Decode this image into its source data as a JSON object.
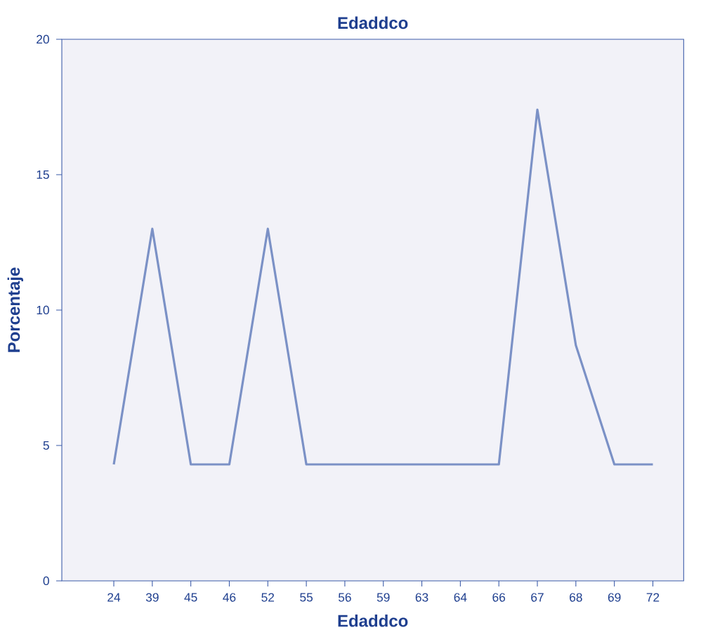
{
  "chart_data": {
    "type": "line",
    "title": "Edaddco",
    "xlabel": "Edaddco",
    "ylabel": "Porcentaje",
    "categories": [
      "24",
      "39",
      "45",
      "46",
      "52",
      "55",
      "56",
      "59",
      "63",
      "64",
      "66",
      "67",
      "68",
      "69",
      "72"
    ],
    "series": [
      {
        "color": "#7b91c6",
        "values": [
          4.3,
          13.0,
          4.3,
          4.3,
          13.0,
          4.3,
          4.3,
          4.3,
          4.3,
          4.3,
          4.3,
          17.4,
          8.7,
          4.3,
          4.3
        ]
      }
    ],
    "ylim": [
      0,
      20
    ],
    "yticks": [
      0,
      5,
      10,
      15,
      20
    ],
    "grid": false,
    "marker": "none",
    "line_style": "solid"
  }
}
